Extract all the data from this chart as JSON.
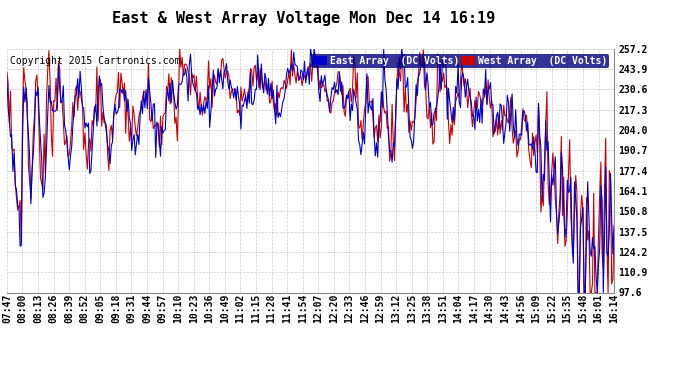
{
  "title": "East & West Array Voltage Mon Dec 14 16:19",
  "copyright": "Copyright 2015 Cartronics.com",
  "legend_east": "East Array  (DC Volts)",
  "legend_west": "West Array  (DC Volts)",
  "east_color": "#0000cc",
  "west_color": "#cc0000",
  "background_color": "#ffffff",
  "grid_color": "#bbbbbb",
  "ylim": [
    97.6,
    257.2
  ],
  "yticks": [
    97.6,
    110.9,
    124.2,
    137.5,
    150.8,
    164.1,
    177.4,
    190.7,
    204.0,
    217.3,
    230.6,
    243.9,
    257.2
  ],
  "xtick_labels": [
    "07:47",
    "08:00",
    "08:13",
    "08:26",
    "08:39",
    "08:52",
    "09:05",
    "09:18",
    "09:31",
    "09:44",
    "09:57",
    "10:10",
    "10:23",
    "10:36",
    "10:49",
    "11:02",
    "11:15",
    "11:28",
    "11:41",
    "11:54",
    "12:07",
    "12:20",
    "12:33",
    "12:46",
    "12:59",
    "13:12",
    "13:25",
    "13:38",
    "13:51",
    "14:04",
    "14:17",
    "14:30",
    "14:43",
    "14:56",
    "15:09",
    "15:22",
    "15:35",
    "15:48",
    "16:01",
    "16:14"
  ],
  "title_fontsize": 11,
  "tick_fontsize": 7,
  "copyright_fontsize": 7
}
